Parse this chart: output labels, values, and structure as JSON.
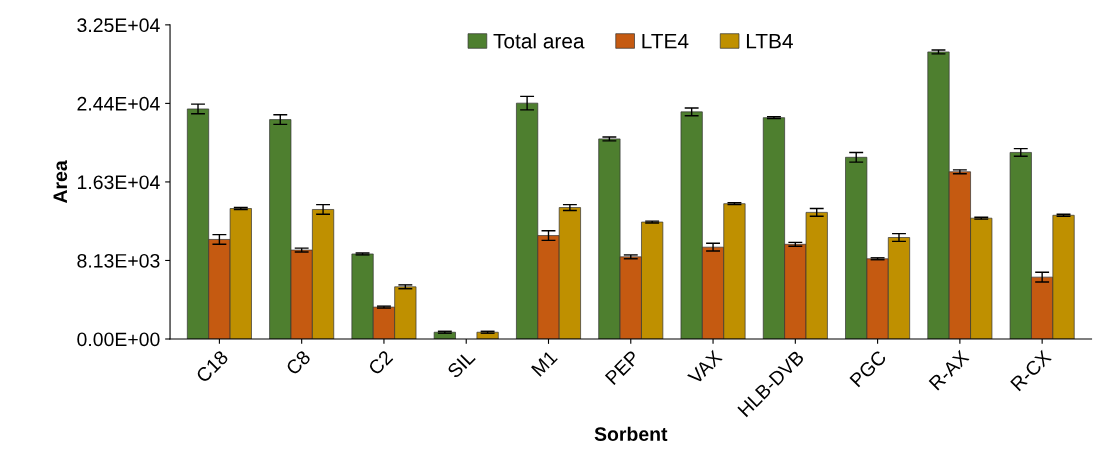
{
  "chart_data": {
    "type": "bar",
    "xlabel": "Sorbent",
    "ylabel": "Area",
    "categories": [
      "C18",
      "C8",
      "C2",
      "SIL",
      "M1",
      "PEP",
      "VAX",
      "HLB-DVB",
      "PGC",
      "R-AX",
      "R-CX"
    ],
    "series": [
      {
        "name": "Total area",
        "color": "#4e7f2f",
        "values": [
          23800,
          22700,
          8800,
          700,
          24400,
          20700,
          23500,
          22900,
          18800,
          29700,
          19300
        ],
        "errors": [
          500,
          500,
          100,
          100,
          700,
          200,
          400,
          100,
          500,
          200,
          400
        ]
      },
      {
        "name": "LTE4",
        "color": "#c55a11",
        "values": [
          10300,
          9200,
          3300,
          null,
          10700,
          8500,
          9500,
          9800,
          8300,
          17300,
          6400
        ],
        "errors": [
          500,
          200,
          100,
          null,
          500,
          200,
          400,
          200,
          100,
          200,
          500
        ]
      },
      {
        "name": "LTB4",
        "color": "#bf9000",
        "values": [
          13500,
          13400,
          5400,
          700,
          13600,
          12100,
          14000,
          13100,
          10500,
          12500,
          12800
        ],
        "errors": [
          100,
          500,
          200,
          100,
          300,
          100,
          100,
          400,
          400,
          100,
          100
        ]
      }
    ],
    "ylim": [
      0,
      32500
    ],
    "yticks": [
      {
        "value": 0,
        "label": "0.00E+00"
      },
      {
        "value": 8125,
        "label": "8.13E+03"
      },
      {
        "value": 16250,
        "label": "1.63E+04"
      },
      {
        "value": 24375,
        "label": "2.44E+04"
      },
      {
        "value": 32500,
        "label": "3.25E+04"
      }
    ],
    "grid": false,
    "legend": "top"
  }
}
